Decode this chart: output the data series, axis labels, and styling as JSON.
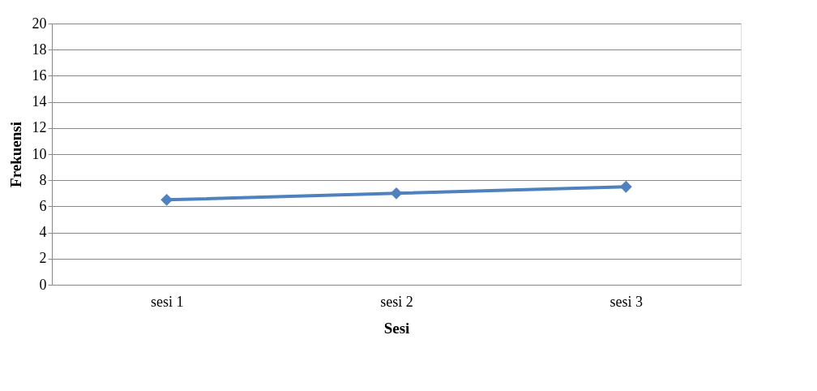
{
  "chart_data": {
    "type": "line",
    "xlabel": "Sesi",
    "ylabel": "Frekuensi",
    "categories": [
      "sesi 1",
      "sesi 2",
      "sesi 3"
    ],
    "series": [
      {
        "color": "#4f81bd",
        "values": [
          6.5,
          7,
          7.5
        ]
      }
    ],
    "ylim": [
      0,
      20
    ],
    "yticks": [
      0,
      2,
      4,
      6,
      8,
      10,
      12,
      14,
      16,
      18,
      20
    ],
    "grid": "y",
    "marker": "diamond",
    "line_style": "solid"
  }
}
